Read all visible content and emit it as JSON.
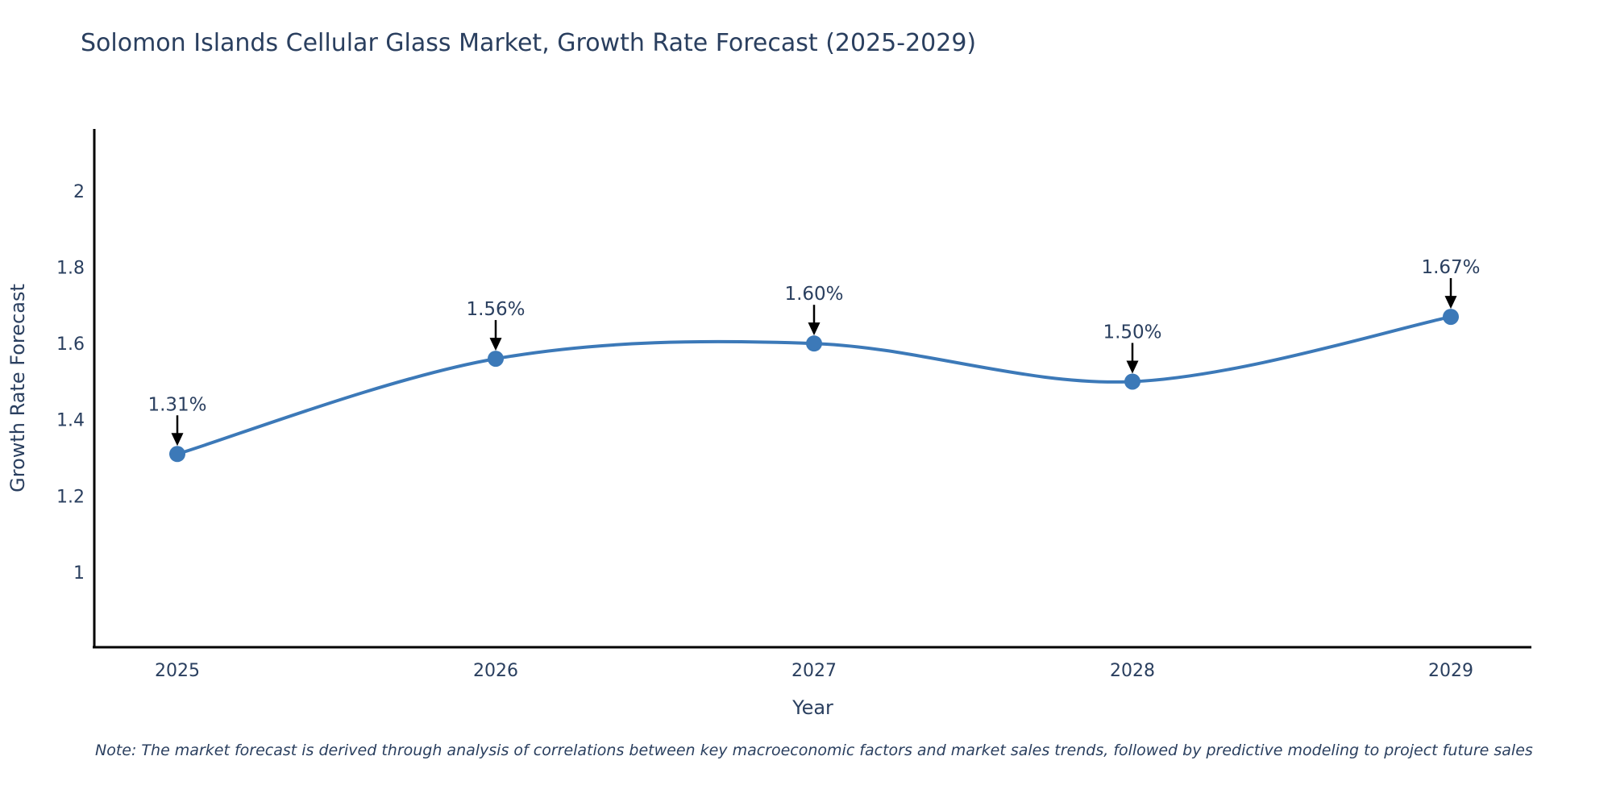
{
  "title": "Solomon Islands Cellular Glass Market, Growth Rate Forecast (2025-2029)",
  "note": "Note: The market forecast is derived through analysis of correlations between key macroeconomic factors and market sales trends, followed by predictive modeling to project future sales",
  "chart_data": {
    "type": "line",
    "title": "Solomon Islands Cellular Glass Market, Growth Rate Forecast (2025-2029)",
    "xlabel": "Year",
    "ylabel": "Growth Rate Forecast",
    "categories": [
      "2025",
      "2026",
      "2027",
      "2028",
      "2029"
    ],
    "series": [
      {
        "name": "Growth Rate Forecast",
        "values": [
          1.31,
          1.56,
          1.6,
          1.5,
          1.67
        ]
      }
    ],
    "point_labels": [
      "1.31%",
      "1.56%",
      "1.60%",
      "1.50%",
      "1.67%"
    ],
    "ytick_values": [
      1,
      1.2,
      1.4,
      1.6,
      1.8,
      2
    ],
    "ytick_labels": [
      "1",
      "1.2",
      "1.4",
      "1.6",
      "1.8",
      "2"
    ],
    "ylim": [
      0.803,
      2.163
    ],
    "line_shape": "spline",
    "grid": false,
    "legend_position": "none",
    "line_color": "#3c79b8",
    "marker_color": "#3c79b8",
    "axis_color": "#000000",
    "text_color": "#2a3f5f",
    "annotation_arrow_color": "#000000"
  }
}
